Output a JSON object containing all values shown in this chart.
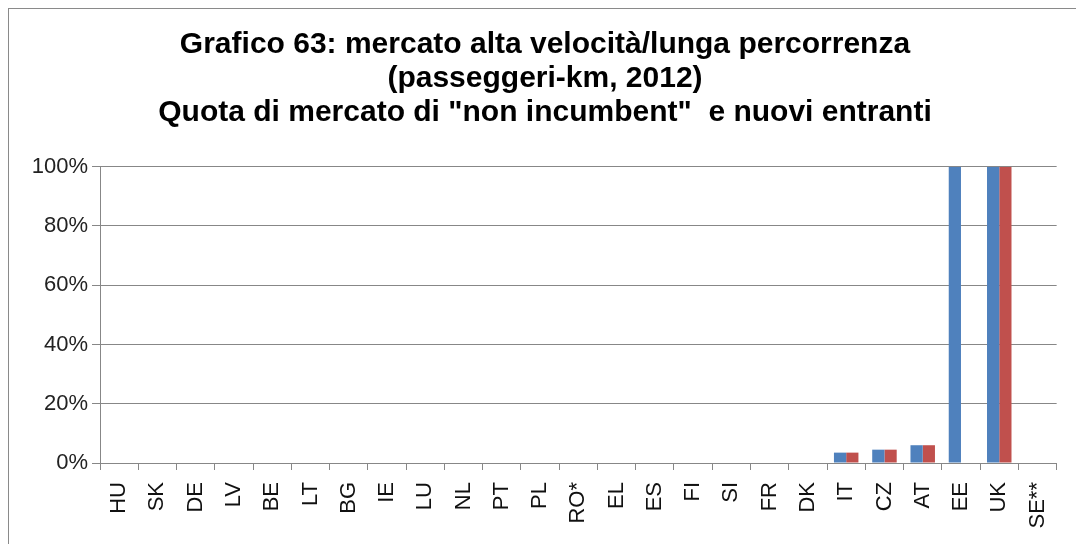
{
  "chart_data": {
    "type": "bar",
    "title": "Grafico 63: mercato alta velocità/lunga percorrenza\n(passeggeri-km, 2012)\nQuota di mercato di \"non incumbent\"  e nuovi entranti",
    "categories": [
      "HU",
      "SK",
      "DE",
      "LV",
      "BE",
      "LT",
      "BG",
      "IE",
      "LU",
      "NL",
      "PT",
      "PL",
      "RO*",
      "EL",
      "ES",
      "FI",
      "SI",
      "FR",
      "DK",
      "IT",
      "CZ",
      "AT",
      "EE",
      "UK",
      "SE**"
    ],
    "series": [
      {
        "color": "#4f81bd",
        "values": [
          0,
          0,
          0,
          0,
          0,
          0,
          0,
          0,
          0,
          0,
          0,
          0,
          0,
          0,
          0,
          0,
          0,
          0,
          0,
          3.5,
          4.5,
          6,
          100,
          100,
          0
        ]
      },
      {
        "color": "#c0504d",
        "values": [
          0,
          0,
          0,
          0,
          0,
          0,
          0,
          0,
          0,
          0,
          0,
          0,
          0,
          0,
          0,
          0,
          0,
          0,
          0,
          3.5,
          4.5,
          6,
          0,
          100,
          0
        ]
      }
    ],
    "ylim": [
      0,
      100
    ],
    "yticks": [
      {
        "value": 0,
        "label": "0%"
      },
      {
        "value": 20,
        "label": "20%"
      },
      {
        "value": 40,
        "label": "40%"
      },
      {
        "value": 60,
        "label": "60%"
      },
      {
        "value": 80,
        "label": "80%"
      },
      {
        "value": 100,
        "label": "100%"
      }
    ],
    "grid": "y",
    "legend": false
  }
}
